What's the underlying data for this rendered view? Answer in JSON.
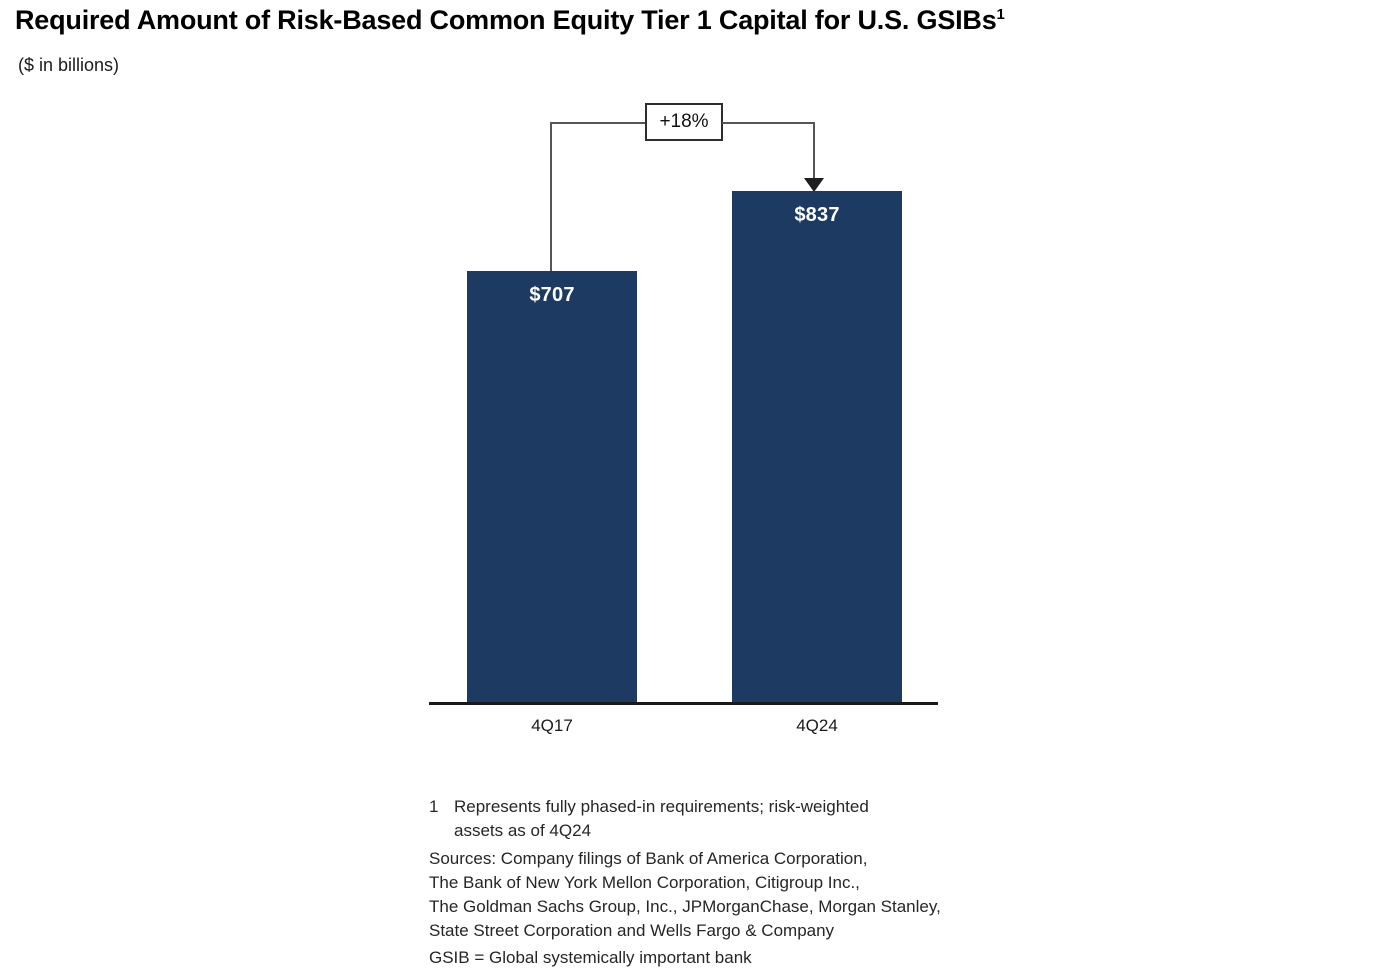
{
  "chart_data": {
    "type": "bar",
    "title": "Required Amount of Risk-Based Common Equity Tier 1 Capital for U.S. GSIBs",
    "title_superscript": "1",
    "subtitle": "($ in billions)",
    "categories": [
      "4Q17",
      "4Q24"
    ],
    "values": [
      707,
      837
    ],
    "value_labels": [
      "$707",
      "$837"
    ],
    "change_annotation": "+18%",
    "xlabel": "",
    "ylabel": "",
    "baseline_value": 0,
    "gridlines": false,
    "legend": "none",
    "bar_color": "#1d3a63",
    "value_label_color": "#ffffff",
    "axis_line_color": "#1a1a1a"
  },
  "footnotes": {
    "note_marker": "1",
    "note_lines": [
      "Represents fully phased-in requirements; risk-weighted",
      "assets as of 4Q24"
    ],
    "source_lines": [
      "Sources: Company filings of Bank of America Corporation,",
      "The Bank of New York Mellon Corporation, Citigroup Inc.,",
      "The Goldman Sachs Group, Inc., JPMorganChase, Morgan Stanley,",
      "State Street Corporation and Wells Fargo & Company",
      "GSIB = Global systemically important bank"
    ]
  }
}
